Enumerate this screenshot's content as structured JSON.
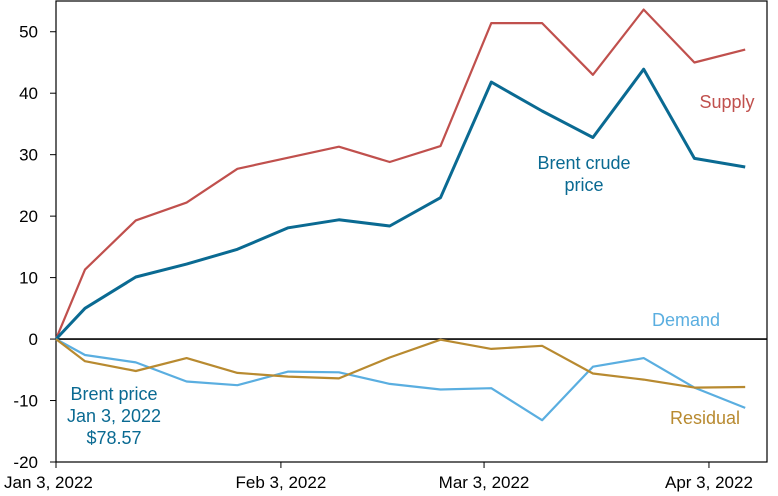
{
  "chart_data": {
    "type": "line",
    "title": "",
    "xlabel": "",
    "ylabel": "",
    "ylim": [
      -20,
      55
    ],
    "yticks": [
      -20,
      -10,
      0,
      10,
      20,
      30,
      40,
      50
    ],
    "xlim": [
      "2022-01-03",
      "2022-04-11"
    ],
    "x_tick_labels": [
      {
        "date": "2022-01-03",
        "label": "Jan 3, 2022"
      },
      {
        "date": "2022-02-03",
        "label": "Feb 3, 2022"
      },
      {
        "date": "2022-03-03",
        "label": "Mar 3, 2022"
      },
      {
        "date": "2022-04-03",
        "label": "Apr 3, 2022"
      }
    ],
    "grid": false,
    "zero_line": true,
    "legend": "none",
    "x": [
      "2022-01-03",
      "2022-01-07",
      "2022-01-14",
      "2022-01-21",
      "2022-01-28",
      "2022-02-04",
      "2022-02-11",
      "2022-02-18",
      "2022-02-25",
      "2022-03-04",
      "2022-03-11",
      "2022-03-18",
      "2022-03-25",
      "2022-04-01",
      "2022-04-08"
    ],
    "series": [
      {
        "name": "Supply",
        "color": "#c0504d",
        "values": [
          0,
          11.3,
          19.3,
          22.2,
          27.7,
          29.5,
          31.3,
          28.8,
          31.4,
          51.4,
          51.4,
          43.0,
          53.6,
          45.0,
          47.1
        ]
      },
      {
        "name": "Brent crude price",
        "color": "#0a6a92",
        "values": [
          0,
          5.0,
          10.1,
          12.2,
          14.6,
          18.1,
          19.4,
          18.4,
          23.0,
          41.8,
          37.1,
          32.8,
          43.9,
          29.4,
          28.0
        ]
      },
      {
        "name": "Demand",
        "color": "#5aaee0",
        "values": [
          0,
          -2.6,
          -3.8,
          -6.9,
          -7.5,
          -5.3,
          -5.4,
          -7.3,
          -8.2,
          -8.0,
          -13.2,
          -4.5,
          -3.1,
          -7.9,
          -11.2
        ]
      },
      {
        "name": "Residual",
        "color": "#b88a30",
        "values": [
          0,
          -3.6,
          -5.2,
          -3.1,
          -5.5,
          -6.1,
          -6.4,
          -3.0,
          -0.1,
          -1.6,
          -1.1,
          -5.6,
          -6.6,
          -7.9,
          -7.8
        ]
      }
    ],
    "annotations": [
      {
        "id": "supply",
        "lines": [
          "Supply"
        ],
        "color": "#c0504d"
      },
      {
        "id": "brent",
        "lines": [
          "Brent crude",
          "price"
        ],
        "color": "#0a6a92"
      },
      {
        "id": "demand",
        "lines": [
          "Demand"
        ],
        "color": "#5aaee0"
      },
      {
        "id": "residual",
        "lines": [
          "Residual"
        ],
        "color": "#b88a30"
      },
      {
        "id": "base",
        "lines": [
          "Brent price",
          "Jan 3, 2022",
          "$78.57"
        ],
        "color": "#0a6a92"
      }
    ]
  }
}
